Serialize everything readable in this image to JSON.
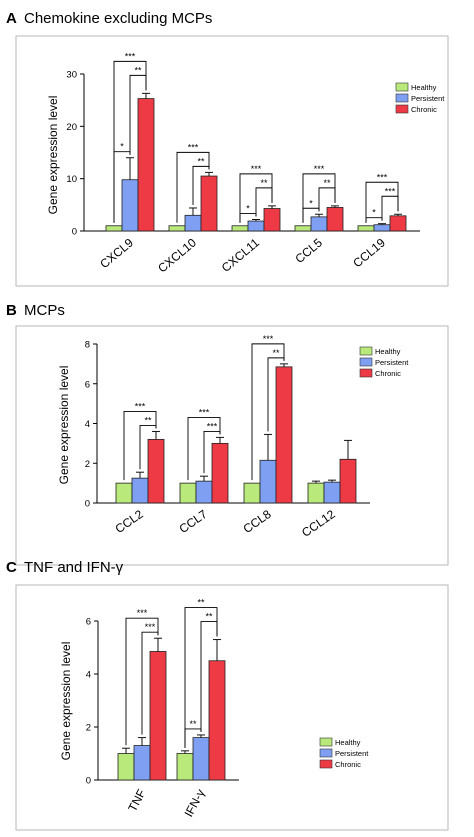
{
  "colors": {
    "Healthy": "#b9e97a",
    "Persistent": "#7f9ff2",
    "Chronic": "#ee3a44"
  },
  "chart_data": [
    {
      "type": "bar",
      "letter": "A",
      "title": "Chemokine excluding MCPs",
      "ylabel": "Gene expression level",
      "ylim": [
        0,
        30
      ],
      "yticks": [
        "0",
        "10",
        "20",
        "30"
      ],
      "categories": [
        "CXCL9",
        "CXCL10",
        "CXCL11",
        "CCL5",
        "CCL19"
      ],
      "series": [
        {
          "name": "Healthy",
          "values": [
            1,
            1,
            1,
            1,
            1
          ],
          "errors": [
            0,
            0,
            0,
            0,
            0
          ]
        },
        {
          "name": "Persistent",
          "values": [
            9.8,
            3.0,
            1.9,
            2.7,
            1.2
          ],
          "errors": [
            4.2,
            1.4,
            0.3,
            0.5,
            0.2
          ]
        },
        {
          "name": "Chronic",
          "values": [
            25.3,
            10.5,
            4.3,
            4.5,
            2.9
          ],
          "errors": [
            1.0,
            0.7,
            0.5,
            0.3,
            0.3
          ]
        }
      ],
      "legend": [
        "Healthy",
        "Persistent",
        "Chronic"
      ],
      "legend_position": "top-right",
      "significance": [
        {
          "cat": 0,
          "pair": "HC",
          "label": "***"
        },
        {
          "cat": 0,
          "pair": "PC",
          "label": "**"
        },
        {
          "cat": 0,
          "pair": "HP",
          "label": "*"
        },
        {
          "cat": 1,
          "pair": "HC",
          "label": "***"
        },
        {
          "cat": 1,
          "pair": "PC",
          "label": "**"
        },
        {
          "cat": 2,
          "pair": "HC",
          "label": "***"
        },
        {
          "cat": 2,
          "pair": "PC",
          "label": "**"
        },
        {
          "cat": 2,
          "pair": "HP",
          "label": "*"
        },
        {
          "cat": 3,
          "pair": "HC",
          "label": "***"
        },
        {
          "cat": 3,
          "pair": "PC",
          "label": "**"
        },
        {
          "cat": 3,
          "pair": "HP",
          "label": "*"
        },
        {
          "cat": 4,
          "pair": "HC",
          "label": "***"
        },
        {
          "cat": 4,
          "pair": "PC",
          "label": "***"
        },
        {
          "cat": 4,
          "pair": "HP",
          "label": "*"
        }
      ]
    },
    {
      "type": "bar",
      "letter": "B",
      "title": "MCPs",
      "ylabel": "Gene expression level",
      "ylim": [
        0,
        8
      ],
      "yticks": [
        "0",
        "2",
        "4",
        "6",
        "8"
      ],
      "categories": [
        "CCL2",
        "CCL7",
        "CCL8",
        "CCL12"
      ],
      "series": [
        {
          "name": "Healthy",
          "values": [
            1,
            1,
            1,
            1
          ],
          "errors": [
            0,
            0,
            0,
            0.1
          ]
        },
        {
          "name": "Persistent",
          "values": [
            1.25,
            1.1,
            2.15,
            1.05
          ],
          "errors": [
            0.3,
            0.25,
            1.3,
            0.1
          ]
        },
        {
          "name": "Chronic",
          "values": [
            3.2,
            3.0,
            6.85,
            2.2
          ],
          "errors": [
            0.4,
            0.3,
            0.15,
            0.95
          ]
        }
      ],
      "legend": [
        "Healthy",
        "Persistent",
        "Chronic"
      ],
      "legend_position": "top-right",
      "significance": [
        {
          "cat": 0,
          "pair": "HC",
          "label": "***"
        },
        {
          "cat": 0,
          "pair": "PC",
          "label": "**"
        },
        {
          "cat": 1,
          "pair": "HC",
          "label": "***"
        },
        {
          "cat": 1,
          "pair": "PC",
          "label": "***"
        },
        {
          "cat": 2,
          "pair": "HC",
          "label": "***"
        },
        {
          "cat": 2,
          "pair": "PC",
          "label": "**"
        }
      ]
    },
    {
      "type": "bar",
      "letter": "C",
      "title": "TNF and IFN-γ",
      "ylabel": "Gene expression level",
      "ylim": [
        0,
        6
      ],
      "yticks": [
        "0",
        "2",
        "4",
        "6"
      ],
      "categories": [
        "TNF",
        "IFN-γ"
      ],
      "series": [
        {
          "name": "Healthy",
          "values": [
            1,
            1
          ],
          "errors": [
            0.2,
            0.1
          ]
        },
        {
          "name": "Persistent",
          "values": [
            1.3,
            1.6
          ],
          "errors": [
            0.3,
            0.1
          ]
        },
        {
          "name": "Chronic",
          "values": [
            4.85,
            4.5
          ],
          "errors": [
            0.5,
            0.8
          ]
        }
      ],
      "legend": [
        "Healthy",
        "Persistent",
        "Chronic"
      ],
      "legend_position": "bottom-right",
      "significance": [
        {
          "cat": 0,
          "pair": "HC",
          "label": "***"
        },
        {
          "cat": 0,
          "pair": "PC",
          "label": "***"
        },
        {
          "cat": 1,
          "pair": "HC",
          "label": "**"
        },
        {
          "cat": 1,
          "pair": "PC",
          "label": "**"
        },
        {
          "cat": 1,
          "pair": "HP",
          "label": "**"
        }
      ]
    }
  ]
}
